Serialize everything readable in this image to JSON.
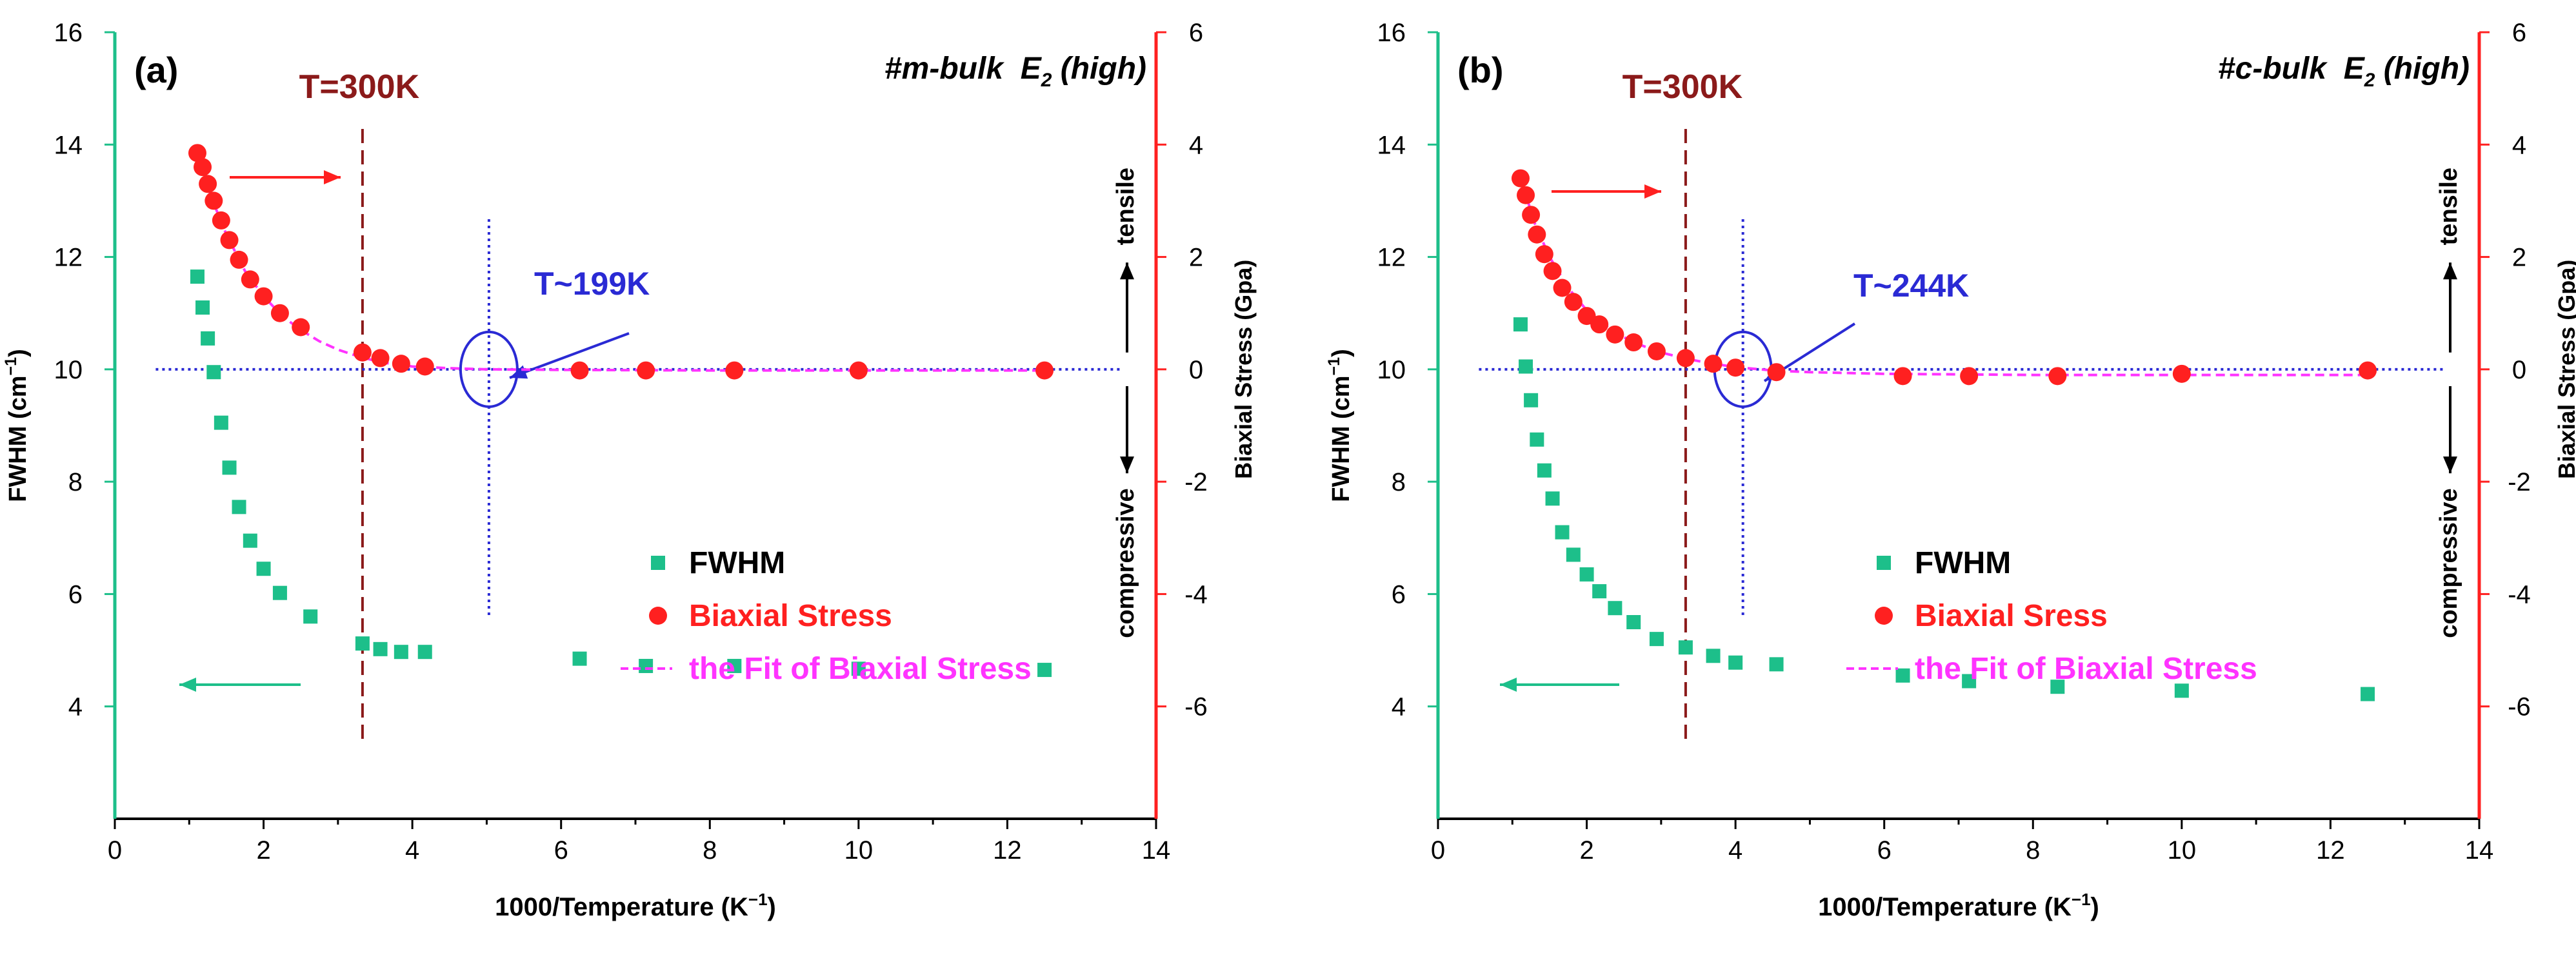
{
  "figure": {
    "xlabel": "1000/Temperature (K",
    "xlabel_sup": "−1",
    "ylabel_left": "FWHM (cm",
    "ylabel_left_sup": "−1",
    "ylabel_left_end": ")",
    "ylabel_right": "Biaxial Stress (Gpa)",
    "xlabel_end": ")",
    "tensile_label": "tensile",
    "compressive_label": "compressive",
    "colors": {
      "fwhm": "#1dbf8a",
      "stress": "#ff2020",
      "fit": "#ff33ff",
      "left_axis": "#1dbf8a",
      "right_axis": "#ff2020",
      "t300": "#8b1a1a",
      "guide": "#2a2ad4"
    }
  },
  "chart_data": [
    {
      "type": "scatter",
      "panel_label": "(a)",
      "title_prefix": "#m-bulk",
      "title_mode": "E",
      "title_mode_sub": "2",
      "title_mode_suffix": "(high)",
      "t300_label": "T=300K",
      "t300_x": 3.33,
      "transition_label": "T~199K",
      "transition_x": 5.03,
      "xlim": [
        0,
        14
      ],
      "ylim_left": [
        2,
        16
      ],
      "ylim_right": [
        -8,
        6
      ],
      "xticks": [
        0,
        2,
        4,
        6,
        8,
        10,
        12,
        14
      ],
      "yticks_left": [
        4,
        6,
        8,
        10,
        12,
        14,
        16
      ],
      "yticks_right": [
        -6,
        -4,
        -2,
        0,
        2,
        4,
        6
      ],
      "legend": [
        "FWHM",
        "Biaxial Stress",
        "the Fit of Biaxial Stress"
      ],
      "series": [
        {
          "name": "FWHM",
          "axis": "left",
          "x": [
            1.11,
            1.18,
            1.25,
            1.33,
            1.43,
            1.54,
            1.67,
            1.82,
            2.0,
            2.22,
            2.63,
            3.33,
            3.57,
            3.85,
            4.17,
            6.25,
            7.14,
            8.33,
            10.0,
            12.5
          ],
          "y": [
            11.65,
            11.1,
            10.55,
            9.95,
            9.05,
            8.25,
            7.55,
            6.95,
            6.45,
            6.02,
            5.6,
            5.12,
            5.02,
            4.97,
            4.97,
            4.85,
            4.72,
            4.72,
            4.67,
            4.65
          ]
        },
        {
          "name": "Biaxial Stress",
          "axis": "right",
          "x": [
            1.11,
            1.18,
            1.25,
            1.33,
            1.43,
            1.54,
            1.67,
            1.82,
            2.0,
            2.22,
            2.5,
            3.33,
            3.57,
            3.85,
            4.17,
            6.25,
            7.14,
            8.33,
            10.0,
            12.5
          ],
          "y": [
            3.85,
            3.6,
            3.3,
            3.0,
            2.65,
            2.3,
            1.95,
            1.6,
            1.3,
            1.0,
            0.75,
            0.3,
            0.2,
            0.1,
            0.05,
            -0.02,
            -0.02,
            -0.02,
            -0.02,
            -0.02
          ]
        },
        {
          "name": "the Fit of Biaxial Stress",
          "axis": "right",
          "line": true,
          "x": [
            1.1,
            1.3,
            1.5,
            1.75,
            2.0,
            2.25,
            2.5,
            2.75,
            3.0,
            3.3,
            3.6,
            4.0,
            4.5,
            5.0,
            6.0,
            8.0,
            10.0,
            12.5
          ],
          "y": [
            3.9,
            3.05,
            2.4,
            1.75,
            1.3,
            0.95,
            0.7,
            0.5,
            0.35,
            0.22,
            0.12,
            0.05,
            0.02,
            0.0,
            -0.01,
            -0.02,
            -0.02,
            -0.02
          ]
        }
      ]
    },
    {
      "type": "scatter",
      "panel_label": "(b)",
      "title_prefix": "#c-bulk",
      "title_mode": "E",
      "title_mode_sub": "2",
      "title_mode_suffix": "(high)",
      "t300_label": "T=300K",
      "t300_x": 3.33,
      "transition_label": "T~244K",
      "transition_x": 4.1,
      "xlim": [
        0,
        14
      ],
      "ylim_left": [
        2,
        16
      ],
      "ylim_right": [
        -8,
        6
      ],
      "xticks": [
        0,
        2,
        4,
        6,
        8,
        10,
        12,
        14
      ],
      "yticks_left": [
        4,
        6,
        8,
        10,
        12,
        14,
        16
      ],
      "yticks_right": [
        -6,
        -4,
        -2,
        0,
        2,
        4,
        6
      ],
      "legend": [
        "FWHM",
        "Biaxial Sress",
        "the Fit of Biaxial Stress"
      ],
      "series": [
        {
          "name": "FWHM",
          "axis": "left",
          "x": [
            1.11,
            1.18,
            1.25,
            1.33,
            1.43,
            1.54,
            1.67,
            1.82,
            2.0,
            2.17,
            2.38,
            2.63,
            2.94,
            3.33,
            3.7,
            4.0,
            4.55,
            6.25,
            7.14,
            8.33,
            10.0,
            12.5
          ],
          "y": [
            10.8,
            10.05,
            9.45,
            8.75,
            8.2,
            7.7,
            7.1,
            6.7,
            6.35,
            6.05,
            5.75,
            5.5,
            5.2,
            5.05,
            4.9,
            4.78,
            4.75,
            4.55,
            4.45,
            4.35,
            4.28,
            4.22
          ]
        },
        {
          "name": "Biaxial Sress",
          "axis": "right",
          "x": [
            1.11,
            1.18,
            1.25,
            1.33,
            1.43,
            1.54,
            1.67,
            1.82,
            2.0,
            2.17,
            2.38,
            2.63,
            2.94,
            3.33,
            3.7,
            4.0,
            4.55,
            6.25,
            7.14,
            8.33,
            10.0,
            12.5
          ],
          "y": [
            3.4,
            3.1,
            2.75,
            2.4,
            2.05,
            1.75,
            1.45,
            1.2,
            0.95,
            0.8,
            0.62,
            0.48,
            0.32,
            0.2,
            0.1,
            0.03,
            -0.05,
            -0.12,
            -0.12,
            -0.12,
            -0.08,
            -0.02
          ]
        },
        {
          "name": "the Fit of Biaxial Stress",
          "axis": "right",
          "line": true,
          "x": [
            1.1,
            1.3,
            1.5,
            1.75,
            2.0,
            2.25,
            2.5,
            2.75,
            3.0,
            3.3,
            3.6,
            4.0,
            4.5,
            5.0,
            6.0,
            8.0,
            10.0,
            12.5
          ],
          "y": [
            3.45,
            2.6,
            2.0,
            1.45,
            1.05,
            0.78,
            0.57,
            0.42,
            0.3,
            0.2,
            0.12,
            0.04,
            -0.02,
            -0.05,
            -0.08,
            -0.1,
            -0.1,
            -0.1
          ]
        }
      ]
    }
  ]
}
